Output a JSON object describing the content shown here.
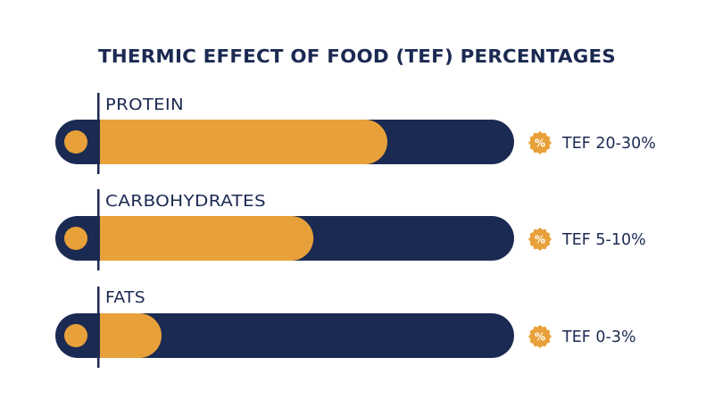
{
  "chart_data": {
    "type": "bar",
    "title": "THERMIC EFFECT OF FOOD (TEF) PERCENTAGES",
    "categories": [
      "PROTEIN",
      "CARBOHYDRATES",
      "FATS"
    ],
    "value_labels": [
      "TEF 20-30%",
      "TEF 5-10%",
      "TEF 0-3%"
    ],
    "badge_symbol": "%",
    "values": [
      70,
      52,
      15
    ],
    "xlim": [
      0,
      100
    ],
    "grid": false,
    "legend": "none",
    "badge_icon": "percent-badge-icon",
    "colors": {
      "track": "#1b2a52",
      "fill": "#e8a13a",
      "text": "#1b2a52",
      "badge_text": "#ffffff"
    }
  }
}
